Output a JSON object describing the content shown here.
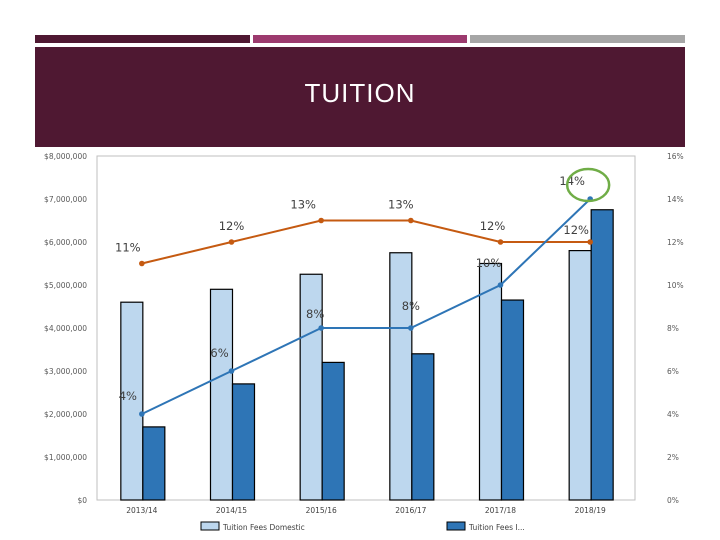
{
  "slide": {
    "title": "TUITION",
    "colors": {
      "stripe_left": "#4f1832",
      "stripe_mid": "#9c3a6e",
      "stripe_right": "#a6a6a6",
      "banner": "#4f1832",
      "title_text": "#ffffff"
    }
  },
  "chart_data": {
    "type": "bar",
    "categories": [
      "2013/14",
      "2014/15",
      "2015/16",
      "2016/17",
      "2017/18",
      "2018/19"
    ],
    "series": [
      {
        "name": "Tuition Fees Domestic",
        "kind": "bar",
        "axis": "left",
        "color": "#bdd7ee",
        "values": [
          4600000,
          4900000,
          5250000,
          5750000,
          5500000,
          5800000
        ]
      },
      {
        "name": "Tuition Fees I...",
        "kind": "bar",
        "axis": "left",
        "color": "#2e75b6",
        "values": [
          1700000,
          2700000,
          3200000,
          3400000,
          4650000,
          6750000
        ]
      },
      {
        "name": "",
        "kind": "line",
        "axis": "right",
        "color": "#c55a11",
        "values": [
          11,
          12,
          13,
          13,
          12,
          12
        ],
        "labels": [
          "11%",
          "12%",
          "13%",
          "13%",
          "12%",
          "12%"
        ]
      },
      {
        "name": "",
        "kind": "line",
        "axis": "right",
        "color": "#2e75b6",
        "values": [
          4,
          6,
          8,
          8,
          10,
          14
        ],
        "labels": [
          "4%",
          "6%",
          "8%",
          "8%",
          "10%",
          "14%"
        ]
      }
    ],
    "left_axis": {
      "ylim": [
        0,
        8000000
      ],
      "ticks": [
        0,
        1000000,
        2000000,
        3000000,
        4000000,
        5000000,
        6000000,
        7000000,
        8000000
      ],
      "tick_labels": [
        "$0",
        "$1,000,000",
        "$2,000,000",
        "$3,000,000",
        "$4,000,000",
        "$5,000,000",
        "$6,000,000",
        "$7,000,000",
        "$8,000,000"
      ]
    },
    "right_axis": {
      "ylim": [
        0,
        16
      ],
      "ticks": [
        0,
        2,
        4,
        6,
        8,
        10,
        12,
        14,
        16
      ],
      "tick_labels": [
        "0%",
        "2%",
        "4%",
        "6%",
        "8%",
        "10%",
        "12%",
        "14%",
        "16%"
      ]
    },
    "annotations": [
      {
        "type": "circle",
        "target": "14%",
        "color": "#70ad47"
      }
    ],
    "legend": "bottom",
    "grid": false
  }
}
